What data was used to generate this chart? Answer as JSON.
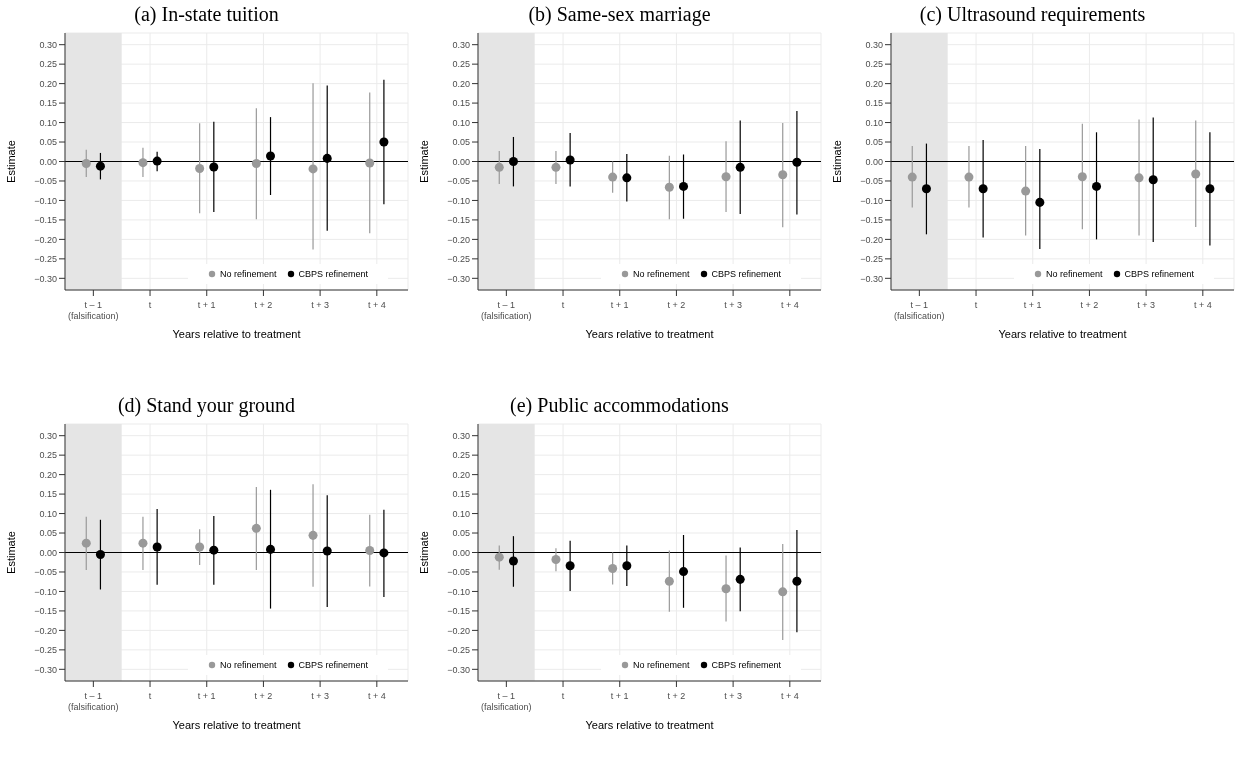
{
  "chart_data": [
    {
      "type": "scatter",
      "title": "(a) In-state tuition",
      "xlabel": "Years relative to treatment",
      "ylabel": "Estimate",
      "categories": [
        "t – 1\n(falsification)",
        "t",
        "t + 1",
        "t + 2",
        "t + 3",
        "t + 4"
      ],
      "ylim": [
        -0.33,
        0.33
      ],
      "yticks": [
        {
          "value": -0.3,
          "label": "−0.30"
        },
        {
          "value": -0.25,
          "label": "−0.25"
        },
        {
          "value": -0.2,
          "label": "−0.20"
        },
        {
          "value": -0.15,
          "label": "−0.15"
        },
        {
          "value": -0.1,
          "label": "−0.10"
        },
        {
          "value": -0.05,
          "label": "−0.05"
        },
        {
          "value": 0,
          "label": "0.00"
        },
        {
          "value": 0.05,
          "label": "0.05"
        },
        {
          "value": 0.1,
          "label": "0.10"
        },
        {
          "value": 0.15,
          "label": "0.15"
        },
        {
          "value": 0.2,
          "label": "0.20"
        },
        {
          "value": 0.25,
          "label": "0.25"
        },
        {
          "value": 0.3,
          "label": "0.30"
        }
      ],
      "grid": true,
      "legend": "bottom right",
      "marker": "circle",
      "ref_lines": [
        {
          "axis": "y",
          "value": 0,
          "color": "#000000"
        }
      ],
      "bands": [
        {
          "axis": "x",
          "from": "t – 1\n(falsification)",
          "to": "t – 1\n(falsification)",
          "color": "#e5e5e5"
        }
      ],
      "series": [
        {
          "name": "No refinement",
          "color": "#999999",
          "values": [
            -0.005,
            -0.003,
            -0.018,
            -0.005,
            -0.019,
            -0.004
          ],
          "errors": [
            [
              -0.04,
              0.03
            ],
            [
              -0.04,
              0.035
            ],
            [
              -0.133,
              0.098
            ],
            [
              -0.148,
              0.137
            ],
            [
              -0.226,
              0.201
            ],
            [
              -0.184,
              0.177
            ]
          ]
        },
        {
          "name": "CBPS refinement",
          "color": "#000000",
          "values": [
            -0.012,
            0.001,
            -0.014,
            0.014,
            0.008,
            0.05
          ],
          "errors": [
            [
              -0.046,
              0.022
            ],
            [
              -0.025,
              0.025
            ],
            [
              -0.13,
              0.102
            ],
            [
              -0.086,
              0.114
            ],
            [
              -0.178,
              0.195
            ],
            [
              -0.11,
              0.21
            ]
          ]
        }
      ]
    },
    {
      "type": "scatter",
      "title": "(b) Same-sex marriage",
      "xlabel": "Years relative to treatment",
      "ylabel": "Estimate",
      "categories": [
        "t – 1\n(falsification)",
        "t",
        "t + 1",
        "t + 2",
        "t + 3",
        "t + 4"
      ],
      "ylim": [
        -0.33,
        0.33
      ],
      "yticks": [
        {
          "value": -0.3,
          "label": "−0.30"
        },
        {
          "value": -0.25,
          "label": "−0.25"
        },
        {
          "value": -0.2,
          "label": "−0.20"
        },
        {
          "value": -0.15,
          "label": "−0.15"
        },
        {
          "value": -0.1,
          "label": "−0.10"
        },
        {
          "value": -0.05,
          "label": "−0.05"
        },
        {
          "value": 0,
          "label": "0.00"
        },
        {
          "value": 0.05,
          "label": "0.05"
        },
        {
          "value": 0.1,
          "label": "0.10"
        },
        {
          "value": 0.15,
          "label": "0.15"
        },
        {
          "value": 0.2,
          "label": "0.20"
        },
        {
          "value": 0.25,
          "label": "0.25"
        },
        {
          "value": 0.3,
          "label": "0.30"
        }
      ],
      "grid": true,
      "legend": "bottom right",
      "marker": "circle",
      "ref_lines": [
        {
          "axis": "y",
          "value": 0,
          "color": "#000000"
        }
      ],
      "bands": [
        {
          "axis": "x",
          "from": "t – 1\n(falsification)",
          "to": "t – 1\n(falsification)",
          "color": "#e5e5e5"
        }
      ],
      "series": [
        {
          "name": "No refinement",
          "color": "#999999",
          "values": [
            -0.015,
            -0.015,
            -0.04,
            -0.066,
            -0.039,
            -0.034
          ],
          "errors": [
            [
              -0.058,
              0.027
            ],
            [
              -0.058,
              0.027
            ],
            [
              -0.08,
              0.0
            ],
            [
              -0.148,
              0.015
            ],
            [
              -0.13,
              0.052
            ],
            [
              -0.169,
              0.099
            ]
          ]
        },
        {
          "name": "CBPS refinement",
          "color": "#000000",
          "values": [
            0.0,
            0.004,
            -0.042,
            -0.064,
            -0.015,
            -0.002
          ],
          "errors": [
            [
              -0.064,
              0.063
            ],
            [
              -0.064,
              0.073
            ],
            [
              -0.103,
              0.019
            ],
            [
              -0.147,
              0.018
            ],
            [
              -0.135,
              0.105
            ],
            [
              -0.136,
              0.13
            ]
          ]
        }
      ]
    },
    {
      "type": "scatter",
      "title": "(c) Ultrasound requirements",
      "xlabel": "Years relative to treatment",
      "ylabel": "Estimate",
      "categories": [
        "t – 1\n(falsification)",
        "t",
        "t + 1",
        "t + 2",
        "t + 3",
        "t + 4"
      ],
      "ylim": [
        -0.33,
        0.33
      ],
      "yticks": [
        {
          "value": -0.3,
          "label": "−0.30"
        },
        {
          "value": -0.25,
          "label": "−0.25"
        },
        {
          "value": -0.2,
          "label": "−0.20"
        },
        {
          "value": -0.15,
          "label": "−0.15"
        },
        {
          "value": -0.1,
          "label": "−0.10"
        },
        {
          "value": -0.05,
          "label": "−0.05"
        },
        {
          "value": 0,
          "label": "0.00"
        },
        {
          "value": 0.05,
          "label": "0.05"
        },
        {
          "value": 0.1,
          "label": "0.10"
        },
        {
          "value": 0.15,
          "label": "0.15"
        },
        {
          "value": 0.2,
          "label": "0.20"
        },
        {
          "value": 0.25,
          "label": "0.25"
        },
        {
          "value": 0.3,
          "label": "0.30"
        }
      ],
      "grid": true,
      "legend": "bottom right",
      "marker": "circle",
      "ref_lines": [
        {
          "axis": "y",
          "value": 0,
          "color": "#000000"
        }
      ],
      "bands": [
        {
          "axis": "x",
          "from": "t – 1\n(falsification)",
          "to": "t – 1\n(falsification)",
          "color": "#e5e5e5"
        }
      ],
      "series": [
        {
          "name": "No refinement",
          "color": "#999999",
          "values": [
            -0.04,
            -0.04,
            -0.076,
            -0.039,
            -0.042,
            -0.032
          ],
          "errors": [
            [
              -0.118,
              0.04
            ],
            [
              -0.118,
              0.04
            ],
            [
              -0.19,
              0.04
            ],
            [
              -0.174,
              0.097
            ],
            [
              -0.19,
              0.108
            ],
            [
              -0.168,
              0.105
            ]
          ]
        },
        {
          "name": "CBPS refinement",
          "color": "#000000",
          "values": [
            -0.07,
            -0.07,
            -0.105,
            -0.064,
            -0.047,
            -0.07
          ],
          "errors": [
            [
              -0.187,
              0.046
            ],
            [
              -0.195,
              0.055
            ],
            [
              -0.225,
              0.032
            ],
            [
              -0.2,
              0.075
            ],
            [
              -0.207,
              0.113
            ],
            [
              -0.216,
              0.075
            ]
          ]
        }
      ]
    },
    {
      "type": "scatter",
      "title": "(d) Stand your ground",
      "xlabel": "Years relative to treatment",
      "ylabel": "Estimate",
      "categories": [
        "t – 1\n(falsification)",
        "t",
        "t + 1",
        "t + 2",
        "t + 3",
        "t + 4"
      ],
      "ylim": [
        -0.33,
        0.33
      ],
      "yticks": [
        {
          "value": -0.3,
          "label": "−0.30"
        },
        {
          "value": -0.25,
          "label": "−0.25"
        },
        {
          "value": -0.2,
          "label": "−0.20"
        },
        {
          "value": -0.15,
          "label": "−0.15"
        },
        {
          "value": -0.1,
          "label": "−0.10"
        },
        {
          "value": -0.05,
          "label": "−0.05"
        },
        {
          "value": 0,
          "label": "0.00"
        },
        {
          "value": 0.05,
          "label": "0.05"
        },
        {
          "value": 0.1,
          "label": "0.10"
        },
        {
          "value": 0.15,
          "label": "0.15"
        },
        {
          "value": 0.2,
          "label": "0.20"
        },
        {
          "value": 0.25,
          "label": "0.25"
        },
        {
          "value": 0.3,
          "label": "0.30"
        }
      ],
      "grid": true,
      "legend": "bottom right",
      "marker": "circle",
      "ref_lines": [
        {
          "axis": "y",
          "value": 0,
          "color": "#000000"
        }
      ],
      "bands": [
        {
          "axis": "x",
          "from": "t – 1\n(falsification)",
          "to": "t – 1\n(falsification)",
          "color": "#e5e5e5"
        }
      ],
      "series": [
        {
          "name": "No refinement",
          "color": "#999999",
          "values": [
            0.024,
            0.024,
            0.014,
            0.062,
            0.044,
            0.005
          ],
          "errors": [
            [
              -0.045,
              0.092
            ],
            [
              -0.045,
              0.092
            ],
            [
              -0.032,
              0.06
            ],
            [
              -0.045,
              0.168
            ],
            [
              -0.088,
              0.175
            ],
            [
              -0.087,
              0.097
            ]
          ]
        },
        {
          "name": "CBPS refinement",
          "color": "#000000",
          "values": [
            -0.005,
            0.014,
            0.006,
            0.008,
            0.004,
            -0.001
          ],
          "errors": [
            [
              -0.095,
              0.084
            ],
            [
              -0.083,
              0.112
            ],
            [
              -0.083,
              0.094
            ],
            [
              -0.144,
              0.161
            ],
            [
              -0.14,
              0.147
            ],
            [
              -0.114,
              0.11
            ]
          ]
        }
      ]
    },
    {
      "type": "scatter",
      "title": "(e) Public accommodations",
      "xlabel": "Years relative to treatment",
      "ylabel": "Estimate",
      "categories": [
        "t – 1\n(falsification)",
        "t",
        "t + 1",
        "t + 2",
        "t + 3",
        "t + 4"
      ],
      "ylim": [
        -0.33,
        0.33
      ],
      "yticks": [
        {
          "value": -0.3,
          "label": "−0.30"
        },
        {
          "value": -0.25,
          "label": "−0.25"
        },
        {
          "value": -0.2,
          "label": "−0.20"
        },
        {
          "value": -0.15,
          "label": "−0.15"
        },
        {
          "value": -0.1,
          "label": "−0.10"
        },
        {
          "value": -0.05,
          "label": "−0.05"
        },
        {
          "value": 0,
          "label": "0.00"
        },
        {
          "value": 0.05,
          "label": "0.05"
        },
        {
          "value": 0.1,
          "label": "0.10"
        },
        {
          "value": 0.15,
          "label": "0.15"
        },
        {
          "value": 0.2,
          "label": "0.20"
        },
        {
          "value": 0.25,
          "label": "0.25"
        },
        {
          "value": 0.3,
          "label": "0.30"
        }
      ],
      "grid": true,
      "legend": "bottom right",
      "marker": "circle",
      "ref_lines": [
        {
          "axis": "y",
          "value": 0,
          "color": "#000000"
        }
      ],
      "bands": [
        {
          "axis": "x",
          "from": "t – 1\n(falsification)",
          "to": "t – 1\n(falsification)",
          "color": "#e5e5e5"
        }
      ],
      "series": [
        {
          "name": "No refinement",
          "color": "#999999",
          "values": [
            -0.012,
            -0.018,
            -0.041,
            -0.074,
            -0.093,
            -0.101
          ],
          "errors": [
            [
              -0.044,
              0.018
            ],
            [
              -0.048,
              0.011
            ],
            [
              -0.082,
              0.0
            ],
            [
              -0.152,
              0.005
            ],
            [
              -0.177,
              -0.008
            ],
            [
              -0.225,
              0.022
            ]
          ]
        },
        {
          "name": "CBPS refinement",
          "color": "#000000",
          "values": [
            -0.022,
            -0.034,
            -0.034,
            -0.049,
            -0.069,
            -0.074
          ],
          "errors": [
            [
              -0.088,
              0.042
            ],
            [
              -0.099,
              0.03
            ],
            [
              -0.086,
              0.018
            ],
            [
              -0.142,
              0.045
            ],
            [
              -0.151,
              0.013
            ],
            [
              -0.205,
              0.058
            ]
          ]
        }
      ]
    }
  ]
}
